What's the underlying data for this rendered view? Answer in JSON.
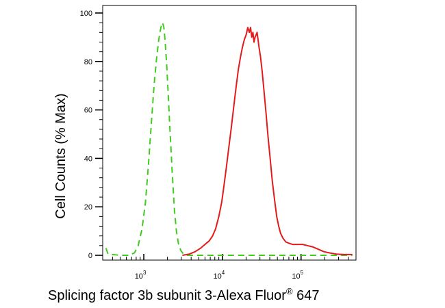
{
  "chart_data": {
    "type": "line",
    "xscale": "log",
    "xlim": [
      300,
      500000
    ],
    "ylim": [
      0,
      100
    ],
    "yticks": [
      0,
      20,
      40,
      60,
      80,
      100
    ],
    "ytick_labels": [
      "0",
      "20",
      "40",
      "60",
      "80",
      "100"
    ],
    "xticks": [
      1000,
      10000,
      100000
    ],
    "xtick_labels": [
      {
        "base": "10",
        "exp": "3"
      },
      {
        "base": "10",
        "exp": "4"
      },
      {
        "base": "10",
        "exp": "5"
      }
    ],
    "ylabel": "Cell Counts (% Max)",
    "xlabel": {
      "main": "Splicing factor 3b subunit 3-Alexa Fluor",
      "reg": "®",
      "tail": " 647"
    },
    "grid": false,
    "legend": "none",
    "series": [
      {
        "color": "#3fcc1f",
        "dash": "dashed",
        "points": [
          [
            330,
            3
          ],
          [
            350,
            0.5
          ],
          [
            500,
            0
          ],
          [
            650,
            0
          ],
          [
            760,
            1
          ],
          [
            850,
            4
          ],
          [
            950,
            11
          ],
          [
            1050,
            22
          ],
          [
            1150,
            38
          ],
          [
            1250,
            55
          ],
          [
            1350,
            70
          ],
          [
            1450,
            81
          ],
          [
            1550,
            89
          ],
          [
            1650,
            94
          ],
          [
            1730,
            96
          ],
          [
            1800,
            94
          ],
          [
            1870,
            88
          ],
          [
            1950,
            79
          ],
          [
            2050,
            66
          ],
          [
            2150,
            52
          ],
          [
            2300,
            34
          ],
          [
            2450,
            19
          ],
          [
            2600,
            10
          ],
          [
            2750,
            5
          ],
          [
            2950,
            2
          ],
          [
            3200,
            0.5
          ],
          [
            3600,
            0
          ],
          [
            5000,
            0
          ],
          [
            8000,
            0
          ],
          [
            12000,
            0
          ],
          [
            20000,
            0
          ],
          [
            40000,
            0
          ],
          [
            80000,
            0
          ],
          [
            150000,
            0
          ],
          [
            300000,
            0
          ],
          [
            450000,
            0
          ]
        ]
      },
      {
        "color": "#e41a1a",
        "dash": "solid",
        "points": [
          [
            3100,
            0
          ],
          [
            3800,
            0.5
          ],
          [
            4500,
            1.5
          ],
          [
            5300,
            3
          ],
          [
            6000,
            4.5
          ],
          [
            6800,
            6
          ],
          [
            7500,
            8
          ],
          [
            8200,
            11
          ],
          [
            9000,
            16
          ],
          [
            9800,
            22
          ],
          [
            10500,
            29
          ],
          [
            11200,
            36
          ],
          [
            12000,
            44
          ],
          [
            13000,
            53
          ],
          [
            14000,
            62
          ],
          [
            15000,
            70
          ],
          [
            16000,
            77
          ],
          [
            17000,
            82
          ],
          [
            18000,
            86
          ],
          [
            19000,
            89
          ],
          [
            20000,
            91
          ],
          [
            21000,
            94
          ],
          [
            22000,
            92
          ],
          [
            22800,
            94
          ],
          [
            23600,
            90
          ],
          [
            24400,
            92
          ],
          [
            25200,
            88
          ],
          [
            26000,
            90
          ],
          [
            26800,
            91
          ],
          [
            27600,
            92
          ],
          [
            28400,
            89
          ],
          [
            29200,
            86
          ],
          [
            30500,
            82
          ],
          [
            32000,
            76
          ],
          [
            34000,
            67
          ],
          [
            36000,
            58
          ],
          [
            38000,
            49
          ],
          [
            40500,
            40
          ],
          [
            43000,
            31
          ],
          [
            46000,
            23
          ],
          [
            49000,
            16
          ],
          [
            52000,
            12
          ],
          [
            55000,
            9
          ],
          [
            59000,
            7
          ],
          [
            64000,
            5.5
          ],
          [
            70000,
            5
          ],
          [
            78000,
            4.5
          ],
          [
            90000,
            4.5
          ],
          [
            105000,
            4.5
          ],
          [
            120000,
            4
          ],
          [
            140000,
            3.5
          ],
          [
            165000,
            2.5
          ],
          [
            195000,
            1.5
          ],
          [
            230000,
            1
          ],
          [
            280000,
            0.5
          ],
          [
            350000,
            0.3
          ],
          [
            450000,
            0.3
          ]
        ]
      }
    ]
  }
}
